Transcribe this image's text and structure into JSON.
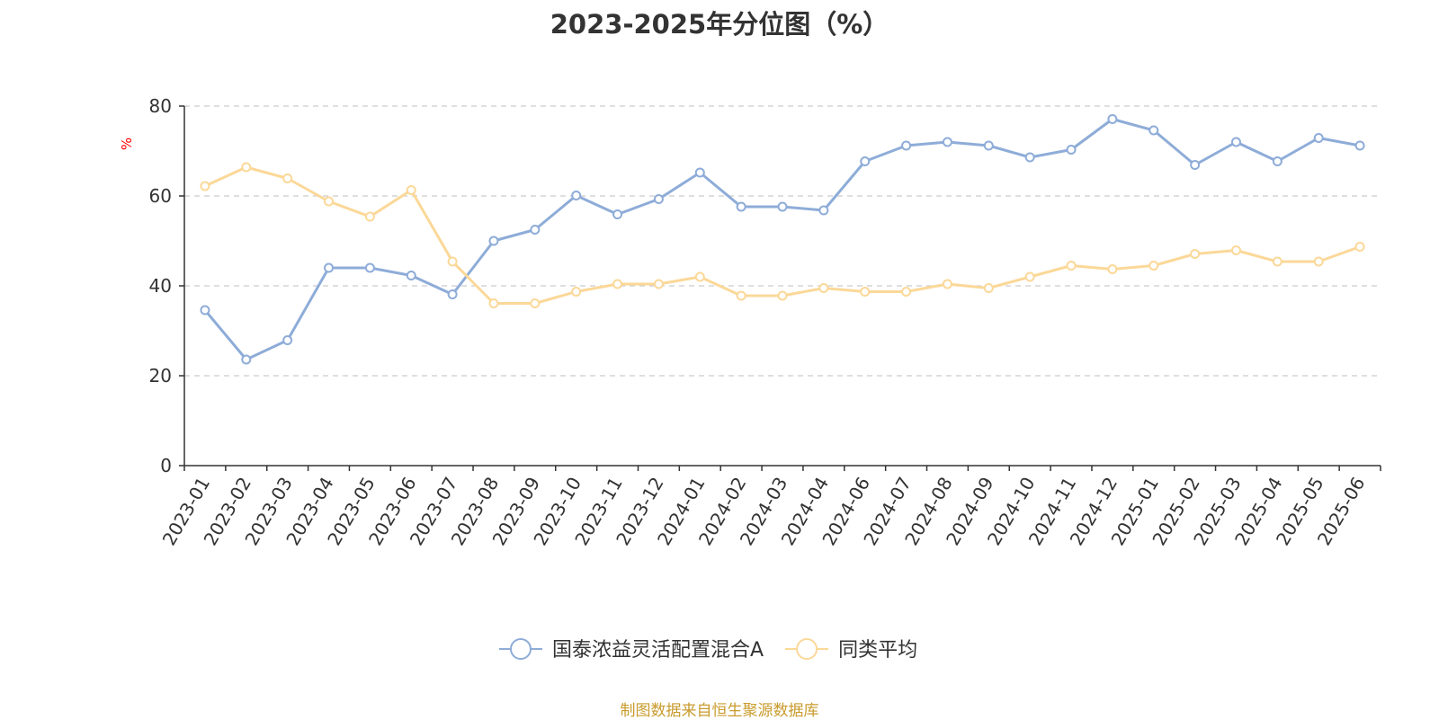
{
  "chart_data": {
    "type": "line",
    "title": "2023-2025年分位图（%）",
    "ylabel": "%",
    "xlabel": "",
    "ylim": [
      0,
      80
    ],
    "yticks": [
      0,
      20,
      40,
      60,
      80
    ],
    "grid": true,
    "legend_position": "bottom-center",
    "categories": [
      "2023-01",
      "2023-02",
      "2023-03",
      "2023-04",
      "2023-05",
      "2023-06",
      "2023-07",
      "2023-08",
      "2023-09",
      "2023-10",
      "2023-11",
      "2023-12",
      "2024-01",
      "2024-02",
      "2024-03",
      "2024-04",
      "2024-06",
      "2024-07",
      "2024-08",
      "2024-09",
      "2024-10",
      "2024-11",
      "2024-12",
      "2025-01",
      "2025-02",
      "2025-03",
      "2025-04",
      "2025-05",
      "2025-06"
    ],
    "series": [
      {
        "name": "国泰浓益灵活配置混合A",
        "color": "#8eacd8",
        "values": [
          34.6,
          23.6,
          27.9,
          44.0,
          44.0,
          42.3,
          38.1,
          50.0,
          52.5,
          60.1,
          55.9,
          59.3,
          65.2,
          57.6,
          57.6,
          56.8,
          67.7,
          71.2,
          72.0,
          71.2,
          68.6,
          70.3,
          77.1,
          74.6,
          66.9,
          72.0,
          67.7,
          72.9,
          71.2
        ]
      },
      {
        "name": "同类平均",
        "color": "#fbd898",
        "values": [
          62.2,
          66.4,
          63.9,
          58.8,
          55.4,
          61.3,
          45.4,
          36.1,
          36.1,
          38.7,
          40.4,
          40.4,
          42.0,
          37.8,
          37.8,
          39.5,
          38.7,
          38.7,
          40.4,
          39.5,
          42.0,
          44.5,
          43.7,
          44.5,
          47.1,
          47.9,
          45.4,
          45.4,
          48.7
        ]
      }
    ]
  },
  "footer": {
    "source": "制图数据来自恒生聚源数据库"
  }
}
